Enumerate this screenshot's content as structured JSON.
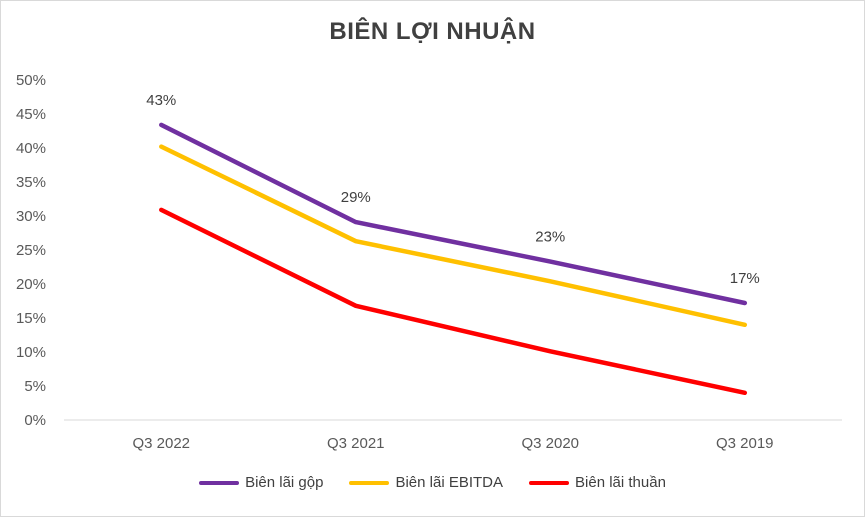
{
  "chart_data": {
    "type": "line",
    "title": "BIÊN LỢI NHUẬN",
    "categories": [
      "Q3 2022",
      "Q3 2021",
      "Q3 2020",
      "Q3 2019"
    ],
    "ylim": [
      0,
      0.5
    ],
    "y_ticks": [
      "0%",
      "5%",
      "10%",
      "15%",
      "20%",
      "25%",
      "30%",
      "35%",
      "40%",
      "45%",
      "50%"
    ],
    "grid": false,
    "legend_position": "bottom",
    "series": [
      {
        "name": "Biên lãi gộp",
        "color": "#7030a0",
        "values": [
          0.434,
          0.291,
          0.233,
          0.172
        ],
        "labels": [
          "43%",
          "29%",
          "23%",
          "17%"
        ]
      },
      {
        "name": "Biên lãi EBITDA",
        "color": "#ffc000",
        "values": [
          0.402,
          0.263,
          0.204,
          0.14
        ]
      },
      {
        "name": "Biên lãi thuần",
        "color": "#ff0000",
        "values": [
          0.309,
          0.168,
          0.101,
          0.04
        ]
      }
    ]
  }
}
